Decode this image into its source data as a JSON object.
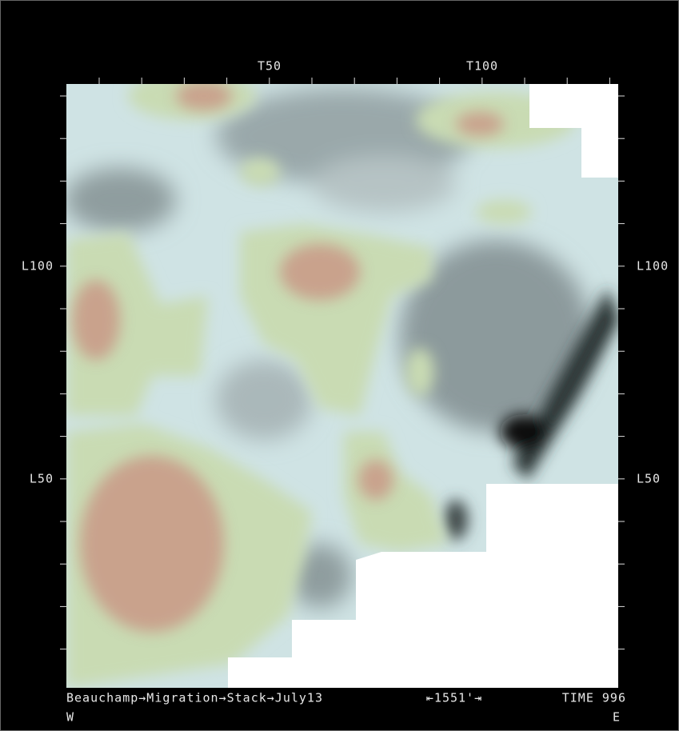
{
  "axes": {
    "top_labels": [
      "T50",
      "T100"
    ],
    "left_labels": [
      "L100",
      "L50"
    ],
    "right_labels": [
      "L100",
      "L50"
    ]
  },
  "footer": {
    "title": "Beauchamp→Migration→Stack→July13",
    "scale": "⇤1551'⇥",
    "time": "TIME 996",
    "west": "W",
    "east": "E"
  }
}
